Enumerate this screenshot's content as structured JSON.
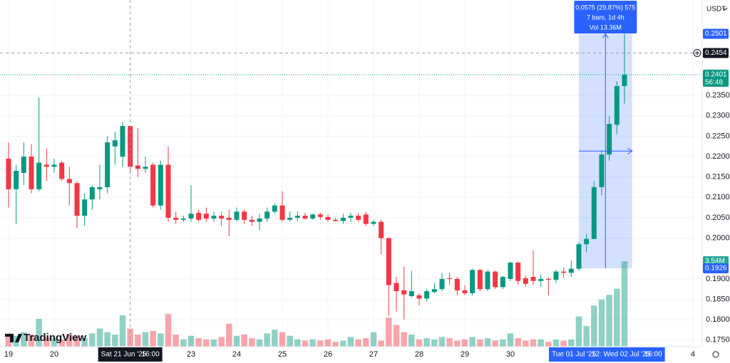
{
  "chart_data": {
    "type": "candlestick",
    "currency": "USDT",
    "brand": "TradingView",
    "up_color": "#089981",
    "down_color": "#f23645",
    "open": [
      0.2195,
      0.212,
      0.216,
      0.22,
      0.212,
      0.218,
      0.2175,
      0.2185,
      0.2145,
      0.2135,
      0.2055,
      0.2095,
      0.212,
      0.2125,
      0.2225,
      0.22,
      0.2275,
      0.2178,
      0.217,
      0.218,
      0.208,
      0.218,
      0.205,
      0.2045,
      0.2048,
      0.2062,
      0.206,
      0.2048,
      0.2055,
      0.205,
      0.2045,
      0.2065,
      0.2045,
      0.204,
      0.2048,
      0.2065,
      0.208,
      0.2045,
      0.205,
      0.2055,
      0.2048,
      0.2058,
      0.2052,
      0.2045,
      0.2042,
      0.205,
      0.2055,
      0.2058,
      0.2035,
      0.204,
      0.2,
      0.189,
      0.1872,
      0.1858,
      0.186,
      0.1852,
      0.1868,
      0.1875,
      0.1902,
      0.19,
      0.1872,
      0.1865,
      0.1922,
      0.1875,
      0.1918,
      0.188,
      0.19,
      0.194,
      0.1902,
      0.1905,
      0.1895,
      0.19,
      0.1898,
      0.1918,
      0.1915,
      0.1925,
      0.1985,
      0.1998,
      0.2125,
      0.2205,
      0.2278,
      0.2373
    ],
    "high": [
      0.2235,
      0.218,
      0.2235,
      0.223,
      0.2345,
      0.222,
      0.2195,
      0.219,
      0.2175,
      0.214,
      0.211,
      0.213,
      0.218,
      0.225,
      0.226,
      0.2285,
      0.2275,
      0.227,
      0.22,
      0.2185,
      0.219,
      0.2225,
      0.2065,
      0.2055,
      0.213,
      0.207,
      0.2075,
      0.2065,
      0.2065,
      0.207,
      0.2075,
      0.207,
      0.2055,
      0.206,
      0.2075,
      0.2085,
      0.2115,
      0.2065,
      0.2065,
      0.2062,
      0.206,
      0.2062,
      0.2058,
      0.205,
      0.206,
      0.2062,
      0.2062,
      0.2065,
      0.2045,
      0.2045,
      0.2002,
      0.1905,
      0.193,
      0.192,
      0.1865,
      0.1875,
      0.189,
      0.1915,
      0.1915,
      0.1905,
      0.1885,
      0.1925,
      0.1925,
      0.1922,
      0.192,
      0.1908,
      0.1942,
      0.1942,
      0.1908,
      0.197,
      0.191,
      0.1905,
      0.1922,
      0.1928,
      0.1945,
      0.199,
      0.201,
      0.214,
      0.2215,
      0.23,
      0.2385,
      0.2501
    ],
    "low": [
      0.2075,
      0.2035,
      0.213,
      0.211,
      0.2115,
      0.214,
      0.216,
      0.214,
      0.208,
      0.2025,
      0.203,
      0.207,
      0.2095,
      0.211,
      0.218,
      0.2175,
      0.216,
      0.215,
      0.216,
      0.2075,
      0.207,
      0.204,
      0.2035,
      0.204,
      0.204,
      0.204,
      0.204,
      0.204,
      0.203,
      0.2005,
      0.204,
      0.2035,
      0.203,
      0.202,
      0.204,
      0.206,
      0.204,
      0.204,
      0.2042,
      0.2045,
      0.2045,
      0.2045,
      0.204,
      0.204,
      0.2035,
      0.204,
      0.204,
      0.203,
      0.203,
      0.196,
      0.181,
      0.182,
      0.18,
      0.1855,
      0.1835,
      0.1845,
      0.1865,
      0.187,
      0.1885,
      0.186,
      0.186,
      0.186,
      0.187,
      0.187,
      0.1875,
      0.1875,
      0.1895,
      0.1885,
      0.1882,
      0.1885,
      0.188,
      0.186,
      0.189,
      0.1902,
      0.1905,
      0.192,
      0.1965,
      0.1998,
      0.2105,
      0.219,
      0.2255,
      0.233
    ],
    "close": [
      0.212,
      0.2165,
      0.22,
      0.212,
      0.2185,
      0.2175,
      0.218,
      0.2145,
      0.2135,
      0.2055,
      0.2095,
      0.2125,
      0.2125,
      0.2235,
      0.224,
      0.2275,
      0.2175,
      0.217,
      0.2175,
      0.208,
      0.218,
      0.205,
      0.2045,
      0.2048,
      0.206,
      0.2045,
      0.2048,
      0.2055,
      0.2048,
      0.2045,
      0.2065,
      0.2045,
      0.204,
      0.2048,
      0.2065,
      0.208,
      0.2045,
      0.205,
      0.2055,
      0.2048,
      0.2058,
      0.2052,
      0.2045,
      0.2042,
      0.205,
      0.2055,
      0.2045,
      0.2035,
      0.204,
      0.2,
      0.1885,
      0.187,
      0.1862,
      0.187,
      0.1852,
      0.187,
      0.1875,
      0.19,
      0.19,
      0.1872,
      0.1865,
      0.1922,
      0.1875,
      0.1918,
      0.188,
      0.1905,
      0.194,
      0.1895,
      0.1888,
      0.1895,
      0.19,
      0.1898,
      0.1918,
      0.1915,
      0.1925,
      0.1985,
      0.1998,
      0.2125,
      0.2205,
      0.228,
      0.2373,
      0.2401
    ],
    "volume": [
      0.55,
      0.45,
      0.6,
      0.5,
      1.15,
      0.4,
      0.35,
      0.3,
      0.5,
      0.45,
      0.35,
      0.55,
      0.75,
      0.6,
      0.5,
      1.3,
      0.75,
      0.5,
      0.6,
      0.65,
      0.55,
      1.35,
      0.5,
      0.3,
      0.45,
      0.35,
      0.3,
      0.3,
      0.4,
      0.95,
      0.45,
      0.5,
      0.35,
      0.3,
      0.55,
      0.7,
      0.6,
      0.45,
      0.3,
      0.25,
      0.3,
      0.25,
      0.3,
      0.2,
      0.25,
      0.4,
      0.3,
      0.35,
      0.6,
      0.25,
      1.2,
      0.9,
      0.6,
      0.5,
      0.3,
      0.35,
      0.3,
      0.4,
      0.35,
      0.25,
      0.3,
      0.4,
      0.3,
      0.35,
      0.25,
      0.3,
      0.55,
      0.35,
      0.25,
      0.3,
      0.3,
      0.2,
      0.3,
      0.25,
      0.3,
      1.25,
      0.85,
      1.7,
      1.95,
      2.15,
      2.4,
      3.54
    ],
    "volume_last_label": "3.54M",
    "volume_ylim": [
      0,
      4.13
    ],
    "xlim": [
      -1.125,
      91.22
    ],
    "ylim": [
      0.1734,
      0.2584
    ],
    "xticks": [
      {
        "value": 0,
        "label": "19"
      },
      {
        "value": 6,
        "label": "20"
      },
      {
        "value": 24,
        "label": "23"
      },
      {
        "value": 30,
        "label": "24"
      },
      {
        "value": 36,
        "label": "25"
      },
      {
        "value": 42,
        "label": "26"
      },
      {
        "value": 48,
        "label": "27"
      },
      {
        "value": 54,
        "label": "28"
      },
      {
        "value": 60,
        "label": "29"
      },
      {
        "value": 66,
        "label": "30"
      },
      {
        "value": 90,
        "label": "4"
      }
    ],
    "yticks": [
      {
        "value": 0.235,
        "label": "0.2350"
      },
      {
        "value": 0.23,
        "label": "0.2300"
      },
      {
        "value": 0.225,
        "label": "0.2250"
      },
      {
        "value": 0.22,
        "label": "0.2200"
      },
      {
        "value": 0.215,
        "label": "0.2150"
      },
      {
        "value": 0.21,
        "label": "0.2100"
      },
      {
        "value": 0.205,
        "label": "0.2050"
      },
      {
        "value": 0.2,
        "label": "0.2000"
      },
      {
        "value": 0.19,
        "label": "0.1900"
      },
      {
        "value": 0.185,
        "label": "0.1850"
      },
      {
        "value": 0.18,
        "label": "0.1800"
      },
      {
        "value": 0.175,
        "label": "0.1750"
      }
    ],
    "grid": true,
    "last_price": {
      "value": 0.2401,
      "label": "0.2401"
    },
    "countdown": "56:48",
    "crosshair": {
      "x": 16,
      "date": "Sat 21 Jun '25",
      "time": "16:00",
      "price": {
        "value": 0.2454,
        "label": "0.2454"
      }
    },
    "measure": {
      "start": 75,
      "end": 82,
      "top": {
        "value": 0.2501,
        "label": "0.2501"
      },
      "bottom": {
        "value": 0.1926,
        "label": "0.1926"
      },
      "lines": [
        "0.0575 (29.87%) 575",
        "7 bars, 1d 4h",
        "Vol 13.36M"
      ],
      "start_date": "Tue 01 Jul '25",
      "start_time": "12:",
      "end_date": "Wed 02 Jul '25",
      "end_time": "16:00"
    }
  }
}
